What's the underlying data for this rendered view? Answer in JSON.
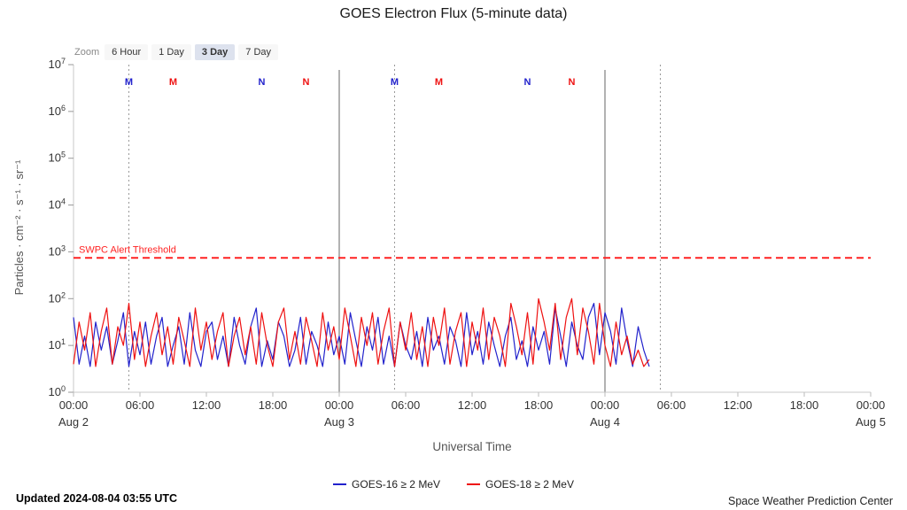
{
  "zoom": {
    "label": "Zoom",
    "options": [
      "6 Hour",
      "1 Day",
      "3 Day",
      "7 Day"
    ],
    "selected": "3 Day"
  },
  "footer": {
    "updated": "Updated 2024-08-04 03:55 UTC",
    "source": "Space Weather Prediction Center"
  },
  "chart_data": {
    "type": "line",
    "title": "GOES Electron Flux (5-minute data)",
    "xlabel": "Universal Time",
    "ylabel": "Particles · cm⁻² · s⁻¹ · sr⁻¹",
    "y_scale": "log",
    "y_exponent_range": [
      0,
      7
    ],
    "x_hours_range": [
      0,
      72
    ],
    "x_ticks": [
      {
        "hour": 0,
        "label": "00:00",
        "day": "Aug 2"
      },
      {
        "hour": 6,
        "label": "06:00"
      },
      {
        "hour": 12,
        "label": "12:00"
      },
      {
        "hour": 18,
        "label": "18:00"
      },
      {
        "hour": 24,
        "label": "00:00",
        "day": "Aug 3"
      },
      {
        "hour": 30,
        "label": "06:00"
      },
      {
        "hour": 36,
        "label": "12:00"
      },
      {
        "hour": 42,
        "label": "18:00"
      },
      {
        "hour": 48,
        "label": "00:00",
        "day": "Aug 4"
      },
      {
        "hour": 54,
        "label": "06:00"
      },
      {
        "hour": 60,
        "label": "12:00"
      },
      {
        "hour": 66,
        "label": "18:00"
      },
      {
        "hour": 72,
        "label": "00:00",
        "day": "Aug 5"
      }
    ],
    "day_lines_hours": [
      24,
      48
    ],
    "dotted_lines_hours": [
      5,
      29,
      53
    ],
    "threshold": {
      "label": "SWPC Alert Threshold",
      "exponent": 2.87,
      "color": "#ff2222"
    },
    "satellite_markers": [
      {
        "label": "M",
        "hour": 5,
        "color": "#2222cc"
      },
      {
        "label": "M",
        "hour": 9,
        "color": "#ee1111"
      },
      {
        "label": "N",
        "hour": 17,
        "color": "#2222cc"
      },
      {
        "label": "N",
        "hour": 21,
        "color": "#ee1111"
      },
      {
        "label": "M",
        "hour": 29,
        "color": "#2222cc"
      },
      {
        "label": "M",
        "hour": 33,
        "color": "#ee1111"
      },
      {
        "label": "N",
        "hour": 41,
        "color": "#2222cc"
      },
      {
        "label": "N",
        "hour": 45,
        "color": "#ee1111"
      }
    ],
    "sample_step_hours": 0.5,
    "series": [
      {
        "name": "GOES-16 ≥ 2 MeV",
        "color": "#2222cc",
        "exponents": [
          1.6,
          0.6,
          1.2,
          0.55,
          1.5,
          0.9,
          1.4,
          0.6,
          1.1,
          1.7,
          0.55,
          1.3,
          0.8,
          1.5,
          0.6,
          1.2,
          1.6,
          0.55,
          1.0,
          1.4,
          0.6,
          1.7,
          0.9,
          0.55,
          1.3,
          1.5,
          0.7,
          1.2,
          0.55,
          1.6,
          1.0,
          0.6,
          1.4,
          1.8,
          0.55,
          1.1,
          0.7,
          1.5,
          1.2,
          0.55,
          0.9,
          1.6,
          0.6,
          1.3,
          1.0,
          0.55,
          1.5,
          0.8,
          1.2,
          0.6,
          1.7,
          1.1,
          0.55,
          1.4,
          0.9,
          1.6,
          0.6,
          1.2,
          0.55,
          1.5,
          1.0,
          0.7,
          1.3,
          0.55,
          1.6,
          0.9,
          1.2,
          0.6,
          1.4,
          1.1,
          0.55,
          1.7,
          0.8,
          1.3,
          0.6,
          1.5,
          1.0,
          0.55,
          1.2,
          1.6,
          0.7,
          1.1,
          0.55,
          1.4,
          0.9,
          1.3,
          0.6,
          1.8,
          1.2,
          0.55,
          1.5,
          1.0,
          0.7,
          1.6,
          1.9,
          0.8,
          1.7,
          1.3,
          0.6,
          1.8,
          1.1,
          0.55,
          1.4,
          0.9,
          0.55
        ]
      },
      {
        "name": "GOES-18 ≥ 2 MeV",
        "color": "#ee1111",
        "exponents": [
          0.6,
          1.5,
          0.9,
          1.7,
          0.55,
          1.3,
          1.8,
          0.6,
          1.4,
          1.0,
          1.9,
          0.7,
          1.5,
          0.55,
          1.2,
          1.7,
          0.8,
          1.4,
          0.6,
          1.6,
          1.1,
          0.55,
          1.8,
          0.9,
          1.5,
          0.7,
          1.3,
          1.7,
          0.55,
          1.2,
          1.6,
          0.8,
          1.4,
          0.6,
          1.7,
          1.0,
          0.55,
          1.5,
          1.8,
          0.7,
          1.3,
          0.6,
          1.6,
          1.1,
          0.55,
          1.7,
          0.9,
          1.4,
          0.7,
          1.8,
          1.2,
          0.55,
          1.6,
          1.0,
          1.7,
          0.6,
          1.3,
          1.8,
          0.55,
          1.5,
          0.9,
          1.7,
          0.7,
          1.4,
          0.55,
          1.6,
          1.0,
          1.8,
          0.6,
          1.3,
          1.7,
          0.55,
          1.5,
          0.9,
          1.8,
          0.7,
          1.6,
          1.2,
          0.55,
          1.9,
          1.4,
          0.8,
          1.7,
          0.6,
          2.0,
          1.5,
          0.9,
          1.9,
          0.7,
          1.6,
          2.0,
          0.8,
          1.8,
          1.3,
          0.6,
          1.9,
          1.0,
          0.55,
          1.5,
          0.8,
          1.2,
          0.6,
          0.9,
          0.55,
          0.7
        ]
      }
    ]
  }
}
